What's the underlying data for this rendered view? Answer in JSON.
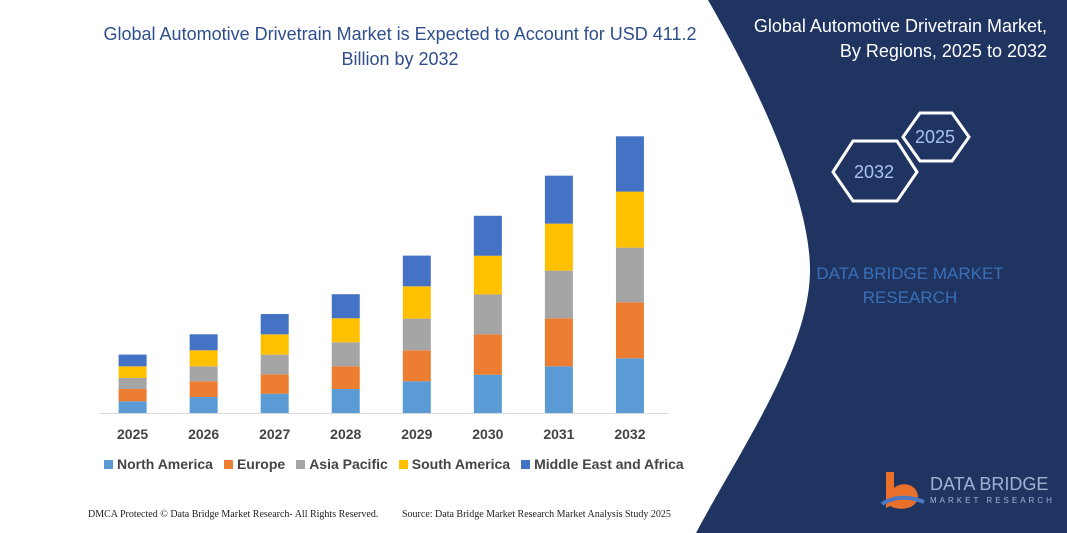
{
  "header": {
    "title": "Global Automotive Drivetrain Market is Expected to Account for USD 411.2 Billion by 2032",
    "side_title_line1": "Global Automotive Drivetrain Market,",
    "side_title_line2": "By Regions, 2025 to 2032"
  },
  "hexagons": {
    "first": "2025",
    "second": "2032"
  },
  "watermark": {
    "line1": "DATA BRIDGE MARKET",
    "line2": "RESEARCH"
  },
  "logo": {
    "name": "DATA BRIDGE",
    "tagline": "MARKET RESEARCH"
  },
  "footer": {
    "left": "DMCA Protected © Data Bridge Market Research- All Rights Reserved.",
    "right": "Source: Data Bridge Market Research Market Analysis Study 2025"
  },
  "colors": {
    "panel": "#1f3461",
    "title": "#2e4e8c"
  },
  "chart_data": {
    "type": "bar",
    "stacked": true,
    "categories": [
      "2025",
      "2026",
      "2027",
      "2028",
      "2029",
      "2030",
      "2031",
      "2032"
    ],
    "series": [
      {
        "name": "North America",
        "color": "#5b9bd5",
        "values": [
          17.4,
          23.8,
          28.7,
          35.7,
          47.1,
          56.9,
          69.4,
          81.3
        ]
      },
      {
        "name": "Europe",
        "color": "#ed7d31",
        "values": [
          18.3,
          23.3,
          28.7,
          33.7,
          46.1,
          59.9,
          71.3,
          83.2
        ]
      },
      {
        "name": "Asia Pacific",
        "color": "#a5a5a5",
        "values": [
          16.3,
          22.3,
          29.3,
          35.7,
          47.1,
          59.4,
          70.9,
          81.3
        ]
      },
      {
        "name": "South America",
        "color": "#ffc000",
        "values": [
          17.4,
          23.8,
          30.2,
          35.7,
          48.0,
          57.5,
          69.8,
          83.2
        ]
      },
      {
        "name": "Middle East and Africa",
        "color": "#4472c4",
        "values": [
          17.4,
          23.8,
          30.2,
          35.7,
          45.6,
          59.4,
          71.3,
          82.2
        ]
      }
    ],
    "legend": "bottom",
    "grid": false,
    "y_axis_visible": false
  }
}
